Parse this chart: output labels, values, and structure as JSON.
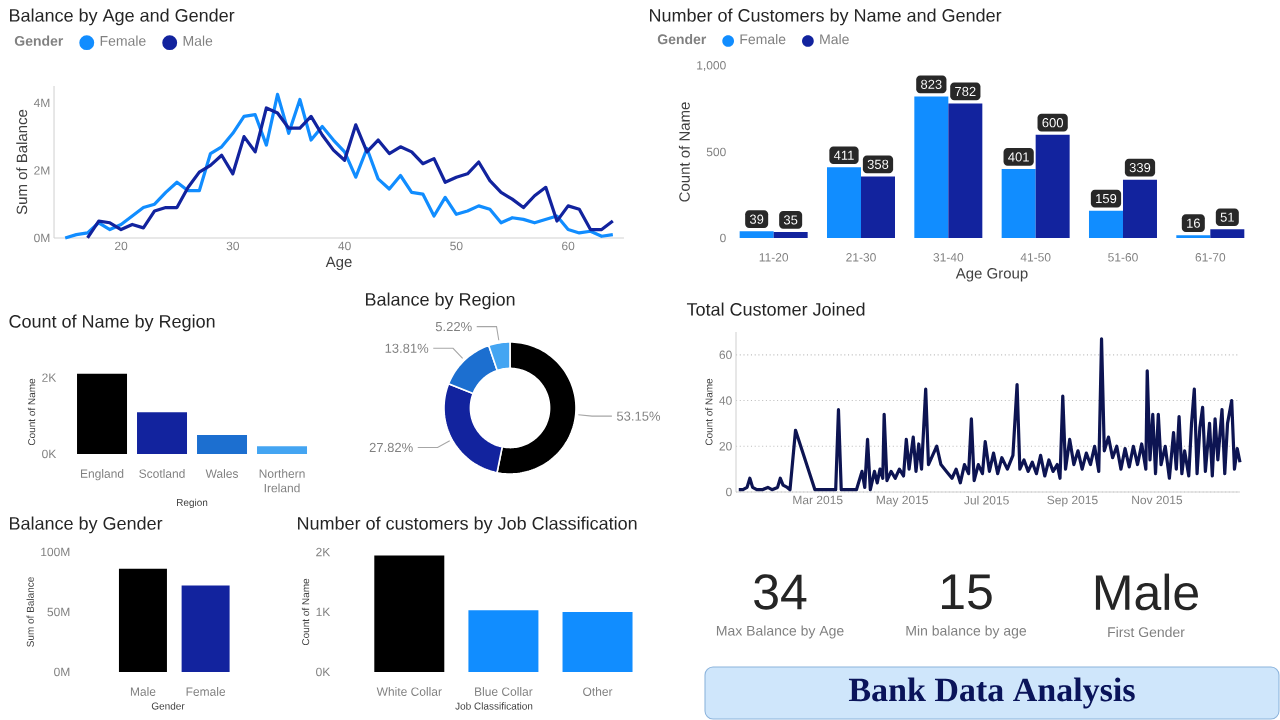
{
  "chart_data": [
    {
      "type": "line",
      "title": "Balance by Age and Gender",
      "legend_title": "Gender",
      "legend": "top left",
      "xlabel": "Age",
      "ylabel": "Sum of Balance",
      "x": [
        15,
        16,
        17,
        18,
        19,
        20,
        21,
        22,
        23,
        24,
        25,
        26,
        27,
        28,
        29,
        30,
        31,
        32,
        33,
        34,
        35,
        36,
        37,
        38,
        39,
        40,
        41,
        42,
        43,
        44,
        45,
        46,
        47,
        48,
        49,
        50,
        51,
        52,
        53,
        54,
        55,
        56,
        57,
        58,
        59,
        60,
        61,
        62,
        63,
        64
      ],
      "series": [
        {
          "name": "Female",
          "color": "#118dff",
          "values": [
            0,
            0.1,
            0.15,
            0.45,
            0.25,
            0.4,
            0.65,
            0.9,
            1.0,
            1.35,
            1.65,
            1.4,
            1.4,
            2.5,
            2.7,
            3.1,
            3.6,
            3.65,
            2.75,
            4.25,
            3.1,
            4.1,
            2.9,
            3.3,
            2.9,
            2.55,
            1.8,
            2.65,
            1.75,
            1.45,
            1.85,
            1.35,
            1.3,
            0.65,
            1.2,
            0.7,
            0.8,
            0.95,
            0.85,
            0.45,
            0.6,
            0.55,
            0.45,
            0.55,
            0.65,
            0.25,
            0.15,
            0.2,
            0.05,
            0.1
          ]
        },
        {
          "name": "Male",
          "color": "#12239e",
          "values": [
            null,
            null,
            0,
            0.5,
            0.45,
            0.25,
            0.4,
            0.3,
            0.8,
            0.9,
            0.9,
            1.5,
            1.95,
            2.15,
            2.45,
            1.9,
            3.0,
            2.55,
            3.85,
            3.7,
            3.25,
            3.25,
            3.6,
            3.05,
            2.6,
            2.3,
            3.35,
            2.55,
            2.9,
            2.5,
            2.7,
            2.55,
            2.2,
            2.35,
            1.65,
            1.8,
            1.9,
            2.25,
            1.7,
            1.35,
            1.15,
            0.9,
            1.25,
            1.5,
            0.5,
            0.95,
            0.85,
            0.25,
            0.25,
            0.5
          ]
        }
      ],
      "xlim": [
        14,
        65
      ],
      "xticks": [
        20,
        30,
        40,
        50,
        60
      ],
      "ylim": [
        0,
        4.5
      ],
      "yticks": [
        {
          "value": 0,
          "label": "0M"
        },
        {
          "value": 2,
          "label": "2M"
        },
        {
          "value": 4,
          "label": "4M"
        }
      ]
    },
    {
      "type": "bar",
      "title": "Number of Customers by Name and Gender",
      "legend_title": "Gender",
      "legend": "top left",
      "xlabel": "Age Group",
      "ylabel": "Count of Name",
      "categories": [
        "11-20",
        "21-30",
        "31-40",
        "41-50",
        "51-60",
        "61-70"
      ],
      "series": [
        {
          "name": "Female",
          "color": "#118dff",
          "values": [
            39,
            411,
            823,
            401,
            159,
            16
          ]
        },
        {
          "name": "Male",
          "color": "#12239e",
          "values": [
            35,
            358,
            782,
            600,
            339,
            51
          ]
        }
      ],
      "ylim": [
        0,
        1000
      ],
      "yticks": [
        0,
        500,
        {
          "value": 1000,
          "label": "1,000"
        }
      ],
      "data_labels": true
    },
    {
      "type": "bar",
      "title": "Count of Name by Region",
      "xlabel": "Region",
      "ylabel": "Count of Name",
      "categories": [
        "England",
        "Scotland",
        "Wales",
        "Northern Ireland"
      ],
      "values": [
        2100,
        1090,
        500,
        200
      ],
      "colors": [
        "#000000",
        "#12239e",
        "#1c6fd0",
        "#44a5f2"
      ],
      "ylim": [
        0,
        2200
      ],
      "yticks": [
        {
          "value": 0,
          "label": "0K"
        },
        {
          "value": 2000,
          "label": "2K"
        }
      ]
    },
    {
      "type": "donut",
      "title": "Balance by Region",
      "categories": [
        null,
        null,
        null,
        null
      ],
      "values": [
        53.15,
        27.82,
        13.81,
        5.22
      ],
      "colors": [
        "#000000",
        "#12239e",
        "#1c6fd0",
        "#44a5f2"
      ],
      "value_labels": [
        "53.15%",
        "27.82%",
        "13.81%",
        "5.22%"
      ]
    },
    {
      "type": "line",
      "title": "Total Customer Joined",
      "ylabel": "Count of Name",
      "color": "#0d1452",
      "grid": "y",
      "x": [
        "2015-01-03",
        "2015-01-06",
        "2015-01-09",
        "2015-01-11",
        "2015-01-13",
        "2015-01-16",
        "2015-01-20",
        "2015-01-24",
        "2015-01-27",
        "2015-01-31",
        "2015-02-02",
        "2015-02-04",
        "2015-02-07",
        "2015-02-09",
        "2015-02-13",
        "2015-02-27",
        "2015-03-14",
        "2015-03-16",
        "2015-03-18",
        "2015-03-29",
        "2015-04-02",
        "2015-04-04",
        "2015-04-06",
        "2015-04-08",
        "2015-04-11",
        "2015-04-13",
        "2015-04-15",
        "2015-04-17",
        "2015-04-18",
        "2015-04-20",
        "2015-04-23",
        "2015-04-26",
        "2015-04-29",
        "2015-05-02",
        "2015-05-04",
        "2015-05-06",
        "2015-05-09",
        "2015-05-11",
        "2015-05-13",
        "2015-05-15",
        "2015-05-18",
        "2015-05-20",
        "2015-05-23",
        "2015-05-26",
        "2015-05-29",
        "2015-06-02",
        "2015-06-06",
        "2015-06-09",
        "2015-06-12",
        "2015-06-15",
        "2015-06-18",
        "2015-06-20",
        "2015-06-22",
        "2015-06-25",
        "2015-06-28",
        "2015-06-30",
        "2015-07-03",
        "2015-07-06",
        "2015-07-09",
        "2015-07-12",
        "2015-07-16",
        "2015-07-20",
        "2015-07-23",
        "2015-07-25",
        "2015-07-28",
        "2015-07-31",
        "2015-08-03",
        "2015-08-06",
        "2015-08-09",
        "2015-08-12",
        "2015-08-15",
        "2015-08-18",
        "2015-08-21",
        "2015-08-23",
        "2015-08-25",
        "2015-08-27",
        "2015-08-30",
        "2015-09-02",
        "2015-09-05",
        "2015-09-08",
        "2015-09-11",
        "2015-09-14",
        "2015-09-17",
        "2015-09-20",
        "2015-09-22",
        "2015-09-24",
        "2015-09-27",
        "2015-09-30",
        "2015-10-03",
        "2015-10-06",
        "2015-10-09",
        "2015-10-12",
        "2015-10-15",
        "2015-10-18",
        "2015-10-21",
        "2015-10-24",
        "2015-10-25",
        "2015-10-27",
        "2015-10-29",
        "2015-10-31",
        "2015-11-02",
        "2015-11-04",
        "2015-11-07",
        "2015-11-10",
        "2015-11-13",
        "2015-11-15",
        "2015-11-17",
        "2015-11-19",
        "2015-11-21",
        "2015-11-24",
        "2015-11-26",
        "2015-11-28",
        "2015-11-30",
        "2015-12-02",
        "2015-12-04",
        "2015-12-06",
        "2015-12-09",
        "2015-12-11",
        "2015-12-13",
        "2015-12-15",
        "2015-12-18",
        "2015-12-20",
        "2015-12-22",
        "2015-12-25",
        "2015-12-27",
        "2015-12-29",
        "2015-12-31"
      ],
      "values": [
        1,
        1,
        2,
        6,
        2,
        1,
        1,
        2,
        1,
        2,
        6,
        3,
        2,
        1,
        27,
        1,
        1,
        36,
        1,
        1,
        9,
        2,
        23,
        1,
        9,
        4,
        10,
        6,
        34,
        5,
        9,
        6,
        10,
        7,
        23,
        10,
        24,
        9,
        21,
        10,
        45,
        12,
        16,
        20,
        12,
        9,
        6,
        10,
        4,
        12,
        8,
        32,
        5,
        12,
        8,
        22,
        9,
        17,
        8,
        15,
        10,
        16,
        47,
        10,
        14,
        9,
        13,
        8,
        16,
        7,
        14,
        9,
        12,
        6,
        42,
        10,
        23,
        12,
        18,
        10,
        17,
        12,
        20,
        9,
        67,
        18,
        24,
        15,
        20,
        10,
        19,
        11,
        20,
        12,
        21,
        10,
        53,
        14,
        34,
        8,
        34,
        12,
        20,
        6,
        26,
        10,
        33,
        8,
        18,
        7,
        30,
        45,
        8,
        28,
        37,
        9,
        30,
        7,
        32,
        14,
        36,
        8,
        30,
        40,
        10,
        19,
        13
      ],
      "xlim": [
        "2015-01-01",
        "2015-12-31"
      ],
      "xticks": [
        {
          "value": "2015-03-01",
          "label": "Mar 2015"
        },
        {
          "value": "2015-05-01",
          "label": "May 2015"
        },
        {
          "value": "2015-07-01",
          "label": "Jul 2015"
        },
        {
          "value": "2015-09-01",
          "label": "Sep 2015"
        },
        {
          "value": "2015-11-01",
          "label": "Nov 2015"
        }
      ],
      "ylim": [
        0,
        70
      ],
      "yticks": [
        0,
        20,
        40,
        60
      ]
    },
    {
      "type": "bar",
      "title": "Balance by Gender",
      "xlabel": "Gender",
      "ylabel": "Sum of Balance",
      "categories": [
        "Male",
        "Female"
      ],
      "values": [
        86,
        72
      ],
      "colors": [
        "#000000",
        "#12239e"
      ],
      "ylim": [
        0,
        100
      ],
      "yticks": [
        {
          "value": 0,
          "label": "0M"
        },
        {
          "value": 50,
          "label": "50M"
        },
        {
          "value": 100,
          "label": "100M"
        }
      ]
    },
    {
      "type": "bar",
      "title": "Number of customers by Job Classification",
      "xlabel": "Job Classification",
      "ylabel": "Count of Name",
      "categories": [
        "White Collar",
        "Blue Collar",
        "Other"
      ],
      "values": [
        1940,
        1030,
        1000
      ],
      "colors": [
        "#000000",
        "#118dff",
        "#118dff"
      ],
      "ylim": [
        0,
        2000
      ],
      "yticks": [
        {
          "value": 0,
          "label": "0K"
        },
        {
          "value": 1000,
          "label": "1K"
        },
        {
          "value": 2000,
          "label": "2K"
        }
      ]
    },
    {
      "type": "other",
      "title": "Bank Data Analysis",
      "annotations": [
        "34",
        "Max Balance by Age",
        "15",
        "Min balance by age",
        "Male",
        "First Gender"
      ]
    }
  ]
}
